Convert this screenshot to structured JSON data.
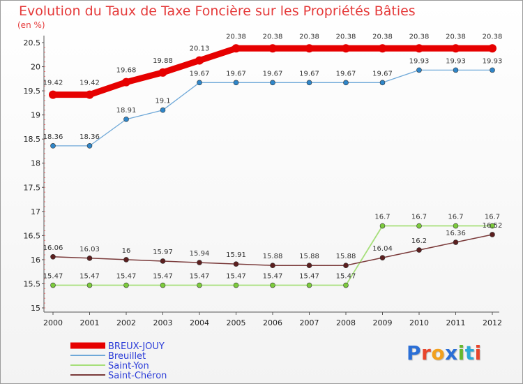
{
  "title": "Evolution du Taux de Taxe Foncière sur les Propriétés Bâties",
  "unit": "(en %)",
  "logo_text": "Proxiti",
  "logo_colors": [
    "#2b6fd6",
    "#e8452c",
    "#f2a01e",
    "#2b6fd6",
    "#66b82e",
    "#2ba9d6",
    "#e8452c"
  ],
  "chart_data": {
    "type": "line",
    "title": "Evolution du Taux de Taxe Foncière sur les Propriétés Bâties",
    "ylabel": "(en %)",
    "xlabel": "",
    "x": [
      "2000",
      "2001",
      "2002",
      "2003",
      "2004",
      "2005",
      "2006",
      "2007",
      "2008",
      "2009",
      "2010",
      "2011",
      "2012"
    ],
    "ylim": [
      15,
      20.5
    ],
    "yticks": [
      "15",
      "15.5",
      "16",
      "16.5",
      "17",
      "17.5",
      "18",
      "18.5",
      "19",
      "19.5",
      "20",
      "20.5"
    ],
    "grid": false,
    "legend_position": "bottom-left",
    "series": [
      {
        "name": "BREUX-JOUY",
        "color": "#e60000",
        "marker_color": "#e60000",
        "values": [
          19.42,
          19.42,
          19.68,
          19.88,
          20.13,
          20.38,
          20.38,
          20.38,
          20.38,
          20.38,
          20.38,
          20.38,
          20.38
        ],
        "labels": [
          "19.42",
          "19.42",
          "19.68",
          "19.88",
          "20.13",
          "20.38",
          "20.38",
          "20.38",
          "20.38",
          "20.38",
          "20.38",
          "20.38",
          "20.38"
        ]
      },
      {
        "name": "Breuillet",
        "color": "#6ea8d8",
        "marker_color": "#2f86c9",
        "values": [
          18.36,
          18.36,
          18.91,
          19.1,
          19.67,
          19.67,
          19.67,
          19.67,
          19.67,
          19.67,
          19.93,
          19.93,
          19.93
        ],
        "labels": [
          "18.36",
          "18.36",
          "18.91",
          "19.1",
          "19.67",
          "19.67",
          "19.67",
          "19.67",
          "19.67",
          "19.67",
          "19.93",
          "19.93",
          "19.93"
        ]
      },
      {
        "name": "Saint-Yon",
        "color": "#a6df7a",
        "marker_color": "#7ccb3c",
        "values": [
          15.47,
          15.47,
          15.47,
          15.47,
          15.47,
          15.47,
          15.47,
          15.47,
          15.47,
          16.7,
          16.7,
          16.7,
          16.7
        ],
        "labels": [
          "15.47",
          "15.47",
          "15.47",
          "15.47",
          "15.47",
          "15.47",
          "15.47",
          "15.47",
          "15.47",
          "16.7",
          "16.7",
          "16.7",
          "16.7"
        ]
      },
      {
        "name": "Saint-Chéron",
        "color": "#7a3a3a",
        "marker_color": "#5c1f1f",
        "values": [
          16.06,
          16.03,
          16,
          15.97,
          15.94,
          15.91,
          15.88,
          15.88,
          15.88,
          16.04,
          16.2,
          16.36,
          16.52
        ],
        "labels": [
          "16.06",
          "16.03",
          "16",
          "15.97",
          "15.94",
          "15.91",
          "15.88",
          "15.88",
          "15.88",
          "16.04",
          "16.2",
          "16.36",
          "16.52"
        ]
      }
    ]
  }
}
